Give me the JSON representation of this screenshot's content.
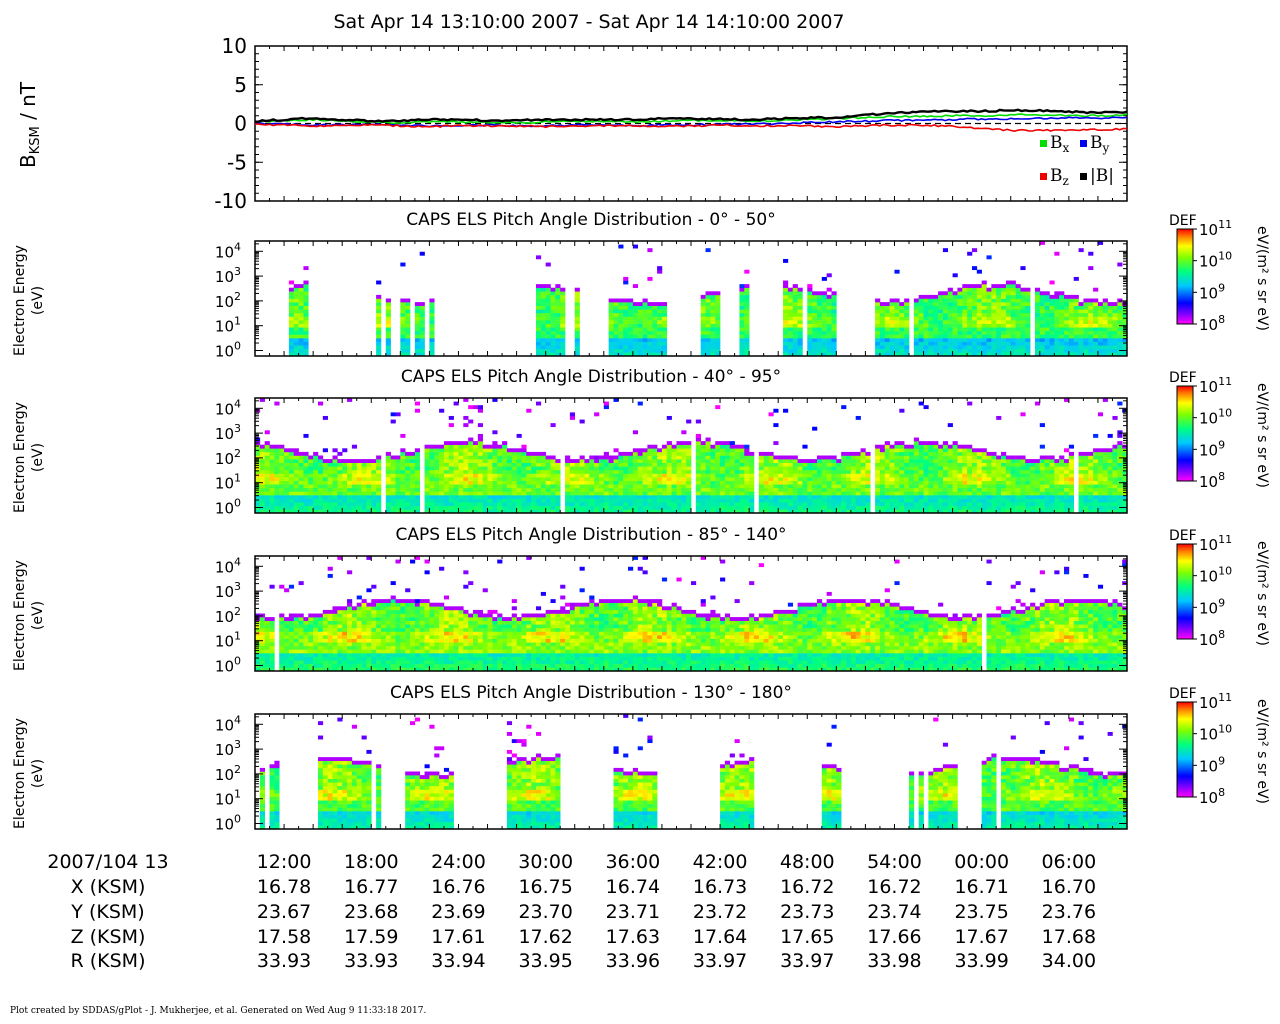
{
  "title": "Sat Apr 14 13:10:00 2007 - Sat Apr 14 14:10:00 2007",
  "footer": "Plot created by SDDAS/gPlot - J. Mukherjee, et al.  Generated on Wed Aug 9 11:33:18 2017.",
  "chart_data": [
    {
      "type": "line",
      "id": "magnetic-field",
      "ylabel": "B",
      "ylabel_sub": "KSM",
      "ylabel_unit": " / nT",
      "ylim": [
        -10,
        10
      ],
      "yticks": [
        10,
        5,
        0,
        -5,
        -10
      ],
      "x_range_minutes": [
        0,
        60
      ],
      "x": [
        0,
        2,
        4,
        6,
        8,
        10,
        12,
        14,
        16,
        18,
        20,
        22,
        24,
        26,
        28,
        30,
        32,
        34,
        36,
        38,
        40,
        42,
        44,
        46,
        48,
        50,
        52,
        54,
        56,
        58,
        60
      ],
      "series": [
        {
          "name": "B",
          "sub": "x",
          "color": "#00dd00",
          "values": [
            0.2,
            0.4,
            0.5,
            0.3,
            0.2,
            0.1,
            0.2,
            0.2,
            0.1,
            0.1,
            0.2,
            0.3,
            0.3,
            0.2,
            0.3,
            0.4,
            0.4,
            0.3,
            0.4,
            0.5,
            0.6,
            0.8,
            0.9,
            0.9,
            1.0,
            1.0,
            1.1,
            1.1,
            1.0,
            1.0,
            1.1
          ]
        },
        {
          "name": "B",
          "sub": "y",
          "color": "#0000ee",
          "values": [
            0.0,
            -0.1,
            -0.2,
            -0.2,
            -0.1,
            -0.2,
            -0.3,
            -0.3,
            -0.2,
            -0.3,
            -0.3,
            -0.2,
            -0.2,
            -0.3,
            -0.2,
            -0.2,
            -0.1,
            -0.1,
            0.0,
            0.1,
            0.2,
            0.3,
            0.4,
            0.4,
            0.5,
            0.6,
            0.6,
            0.7,
            0.7,
            0.7,
            0.8
          ]
        },
        {
          "name": "B",
          "sub": "z",
          "color": "#ee0000",
          "values": [
            -0.1,
            -0.2,
            -0.3,
            -0.3,
            -0.2,
            -0.3,
            -0.4,
            -0.3,
            -0.3,
            -0.3,
            -0.4,
            -0.3,
            -0.3,
            -0.3,
            -0.4,
            -0.3,
            -0.2,
            -0.3,
            -0.3,
            -0.3,
            -0.4,
            -0.3,
            -0.2,
            -0.2,
            -0.4,
            -0.6,
            -0.9,
            -0.9,
            -0.8,
            -0.8,
            -0.7
          ]
        },
        {
          "name": "|B|",
          "sub": "",
          "color": "#000000",
          "values": [
            0.3,
            0.5,
            0.7,
            0.5,
            0.3,
            0.3,
            0.5,
            0.5,
            0.4,
            0.4,
            0.5,
            0.5,
            0.5,
            0.5,
            0.6,
            0.6,
            0.6,
            0.5,
            0.6,
            0.7,
            0.8,
            1.1,
            1.4,
            1.5,
            1.6,
            1.6,
            1.7,
            1.7,
            1.5,
            1.4,
            1.5
          ]
        }
      ],
      "zero_line": "dashed",
      "legend": "bottom-right"
    },
    {
      "type": "heatmap",
      "id": "pad-0-50",
      "title": "CAPS ELS Pitch Angle Distribution - 0° - 50°",
      "ylabel": [
        "Electron Energy",
        "(eV)"
      ],
      "ylog_range": [
        0.6,
        26000
      ],
      "yticks": [
        "10",
        "10",
        "10",
        "10",
        "10"
      ],
      "ytick_exps": [
        "4",
        "3",
        "2",
        "1",
        "0"
      ],
      "colorbar": {
        "label": "DEF",
        "unit": "eV/(m² s sr eV)",
        "ticks": [
          "10",
          "10",
          "10",
          "10"
        ],
        "exps": [
          "11",
          "10",
          "9",
          "8"
        ]
      },
      "active_intervals_minutes": [
        [
          2.2,
          3.7
        ],
        [
          8.3,
          8.7
        ],
        [
          9.0,
          9.4
        ],
        [
          10.1,
          10.6
        ],
        [
          11.1,
          11.6
        ],
        [
          11.9,
          12.4
        ],
        [
          19.4,
          21.2
        ],
        [
          22.0,
          22.3
        ],
        [
          24.2,
          28.5
        ],
        [
          30.6,
          31.9
        ],
        [
          33.2,
          34.0
        ],
        [
          36.3,
          39.9
        ],
        [
          42.7,
          60
        ]
      ],
      "level_exp": [
        9.2,
        9.8,
        10.4,
        10.8
      ]
    },
    {
      "type": "heatmap",
      "id": "pad-40-95",
      "title": "CAPS ELS Pitch Angle Distribution - 40° - 95°",
      "ylabel": [
        "Electron Energy",
        "(eV)"
      ],
      "ylog_range": [
        0.6,
        26000
      ],
      "yticks": [
        "10",
        "10",
        "10",
        "10",
        "10"
      ],
      "ytick_exps": [
        "4",
        "3",
        "2",
        "1",
        "0"
      ],
      "colorbar": {
        "label": "DEF",
        "unit": "eV/(m² s sr eV)",
        "ticks": [
          "10",
          "10",
          "10",
          "10"
        ],
        "exps": [
          "11",
          "10",
          "9",
          "8"
        ]
      },
      "active_intervals_minutes": [
        [
          0,
          60
        ]
      ],
      "level_exp": [
        9.4,
        10.0,
        10.5,
        10.9
      ]
    },
    {
      "type": "heatmap",
      "id": "pad-85-140",
      "title": "CAPS ELS Pitch Angle Distribution - 85° - 140°",
      "ylabel": [
        "Electron Energy",
        "(eV)"
      ],
      "ylog_range": [
        0.6,
        26000
      ],
      "yticks": [
        "10",
        "10",
        "10",
        "10",
        "10"
      ],
      "ytick_exps": [
        "4",
        "3",
        "2",
        "1",
        "0"
      ],
      "colorbar": {
        "label": "DEF",
        "unit": "eV/(m² s sr eV)",
        "ticks": [
          "10",
          "10",
          "10",
          "10"
        ],
        "exps": [
          "11",
          "10",
          "9",
          "8"
        ]
      },
      "active_intervals_minutes": [
        [
          0,
          60
        ]
      ],
      "level_exp": [
        9.5,
        10.1,
        10.6,
        10.9
      ]
    },
    {
      "type": "heatmap",
      "id": "pad-130-180",
      "title": "CAPS ELS Pitch Angle Distribution - 130° - 180°",
      "ylabel": [
        "Electron Energy",
        "(eV)"
      ],
      "ylog_range": [
        0.6,
        26000
      ],
      "yticks": [
        "10",
        "10",
        "10",
        "10",
        "10"
      ],
      "ytick_exps": [
        "4",
        "3",
        "2",
        "1",
        "0"
      ],
      "colorbar": {
        "label": "DEF",
        "unit": "eV/(m² s sr eV)",
        "ticks": [
          "10",
          "10",
          "10",
          "10"
        ],
        "exps": [
          "11",
          "10",
          "9",
          "8"
        ]
      },
      "active_intervals_minutes": [
        [
          0.3,
          1.8
        ],
        [
          4.5,
          8.5
        ],
        [
          10.2,
          13.7
        ],
        [
          17.5,
          21.1
        ],
        [
          24.7,
          27.8
        ],
        [
          32.1,
          34.3
        ],
        [
          39.1,
          40.2
        ],
        [
          45.0,
          48.2
        ],
        [
          50.0,
          60
        ]
      ],
      "level_exp": [
        9.3,
        9.9,
        10.5,
        10.9
      ]
    }
  ],
  "ephemeris": {
    "tick_minutes": [
      2,
      8,
      14,
      20,
      26,
      32,
      38,
      44,
      50,
      56
    ],
    "time_label": "2007/104 13",
    "time_ticks": [
      "12:00",
      "18:00",
      "24:00",
      "30:00",
      "36:00",
      "42:00",
      "48:00",
      "54:00",
      "00:00",
      "06:00"
    ],
    "rows": [
      {
        "label": "X (KSM)",
        "values": [
          "16.78",
          "16.77",
          "16.76",
          "16.75",
          "16.74",
          "16.73",
          "16.72",
          "16.72",
          "16.71",
          "16.70"
        ]
      },
      {
        "label": "Y (KSM)",
        "values": [
          "23.67",
          "23.68",
          "23.69",
          "23.70",
          "23.71",
          "23.72",
          "23.73",
          "23.74",
          "23.75",
          "23.76"
        ]
      },
      {
        "label": "Z (KSM)",
        "values": [
          "17.58",
          "17.59",
          "17.61",
          "17.62",
          "17.63",
          "17.64",
          "17.65",
          "17.66",
          "17.67",
          "17.68"
        ]
      },
      {
        "label": "R (KSM)",
        "values": [
          "33.93",
          "33.93",
          "33.94",
          "33.95",
          "33.96",
          "33.97",
          "33.97",
          "33.98",
          "33.99",
          "34.00"
        ]
      }
    ]
  }
}
